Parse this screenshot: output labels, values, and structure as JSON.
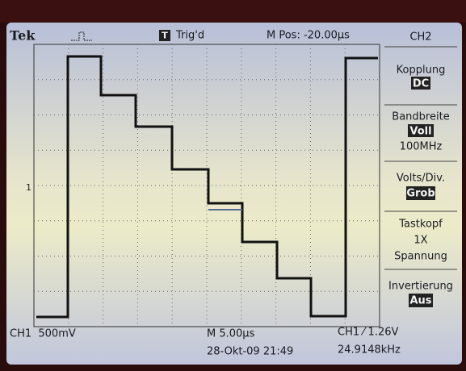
{
  "header": {
    "brand": "Tek",
    "trigger_icon": "T",
    "trigger_state": "Trig'd",
    "position": "M Pos: -20.00µs"
  },
  "menu": {
    "title": "CH2",
    "items": [
      {
        "label": "Kopplung",
        "value": "DC"
      },
      {
        "label": "Bandbreite",
        "value": "Voll",
        "extra": "100MHz"
      },
      {
        "label": "Volts/Div.",
        "value": "Grob"
      },
      {
        "label": "Tastkopf",
        "value": "1X",
        "extra": "Spannung"
      },
      {
        "label": "Invertierung",
        "value": "Aus"
      }
    ]
  },
  "channel_marker": "1",
  "footer": {
    "channel": "CH1  500mV",
    "timebase": "M 5.00µs",
    "trigger": "CH1 ⁄ 1.26V",
    "datetime": "28-Okt-09 21:49",
    "frequency": "24.9148kHz"
  }
}
